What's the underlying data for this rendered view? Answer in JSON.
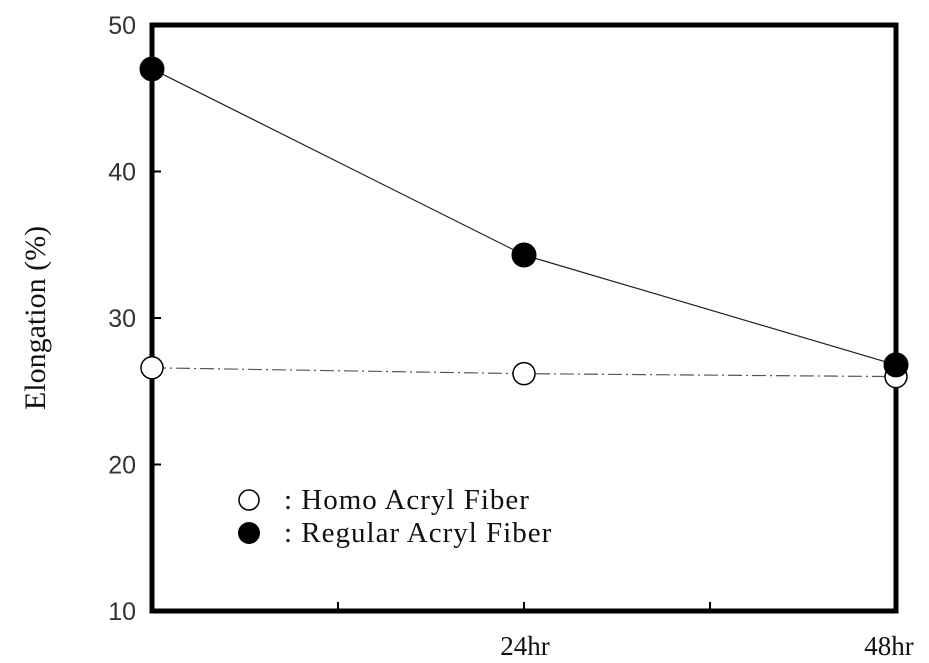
{
  "chart_data": {
    "type": "line",
    "ylabel": "Elongation (%)",
    "xlabel": "",
    "ylim": [
      10,
      50
    ],
    "y_ticks": [
      "10",
      "20",
      "30",
      "40",
      "50"
    ],
    "x_ticks": [
      "24hr",
      "48hr"
    ],
    "grid": false,
    "legend_position": "bottom-left",
    "x": [
      0,
      24,
      48
    ],
    "series": [
      {
        "name": "Homo Acryl Fiber",
        "legend_label": ": Homo Acryl Fiber",
        "marker": "open-circle",
        "line_style": "dash-dot",
        "values": [
          26.6,
          26.2,
          26.0
        ]
      },
      {
        "name": "Regular Acryl Fiber",
        "legend_label": ": Regular Acryl Fiber",
        "marker": "filled-circle",
        "line_style": "solid",
        "values": [
          47.0,
          34.3,
          26.8
        ]
      }
    ]
  }
}
